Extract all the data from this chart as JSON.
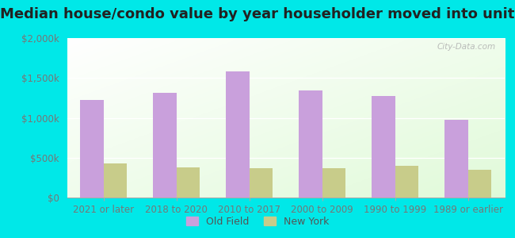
{
  "title": "Median house/condo value by year householder moved into unit",
  "categories": [
    "2021 or later",
    "2018 to 2020",
    "2010 to 2017",
    "2000 to 2009",
    "1990 to 1999",
    "1989 or earlier"
  ],
  "old_field_values": [
    1220000,
    1310000,
    1580000,
    1340000,
    1270000,
    975000
  ],
  "new_york_values": [
    430000,
    380000,
    370000,
    370000,
    400000,
    345000
  ],
  "old_field_color": "#c9a0dc",
  "new_york_color": "#c8cc8a",
  "background_color": "#00e8e8",
  "ylim": [
    0,
    2000000
  ],
  "yticks": [
    0,
    500000,
    1000000,
    1500000,
    2000000
  ],
  "ytick_labels": [
    "$0",
    "$500k",
    "$1,000k",
    "$1,500k",
    "$2,000k"
  ],
  "legend_labels": [
    "Old Field",
    "New York"
  ],
  "watermark": "City-Data.com",
  "title_fontsize": 13,
  "tick_fontsize": 8.5,
  "legend_fontsize": 9
}
